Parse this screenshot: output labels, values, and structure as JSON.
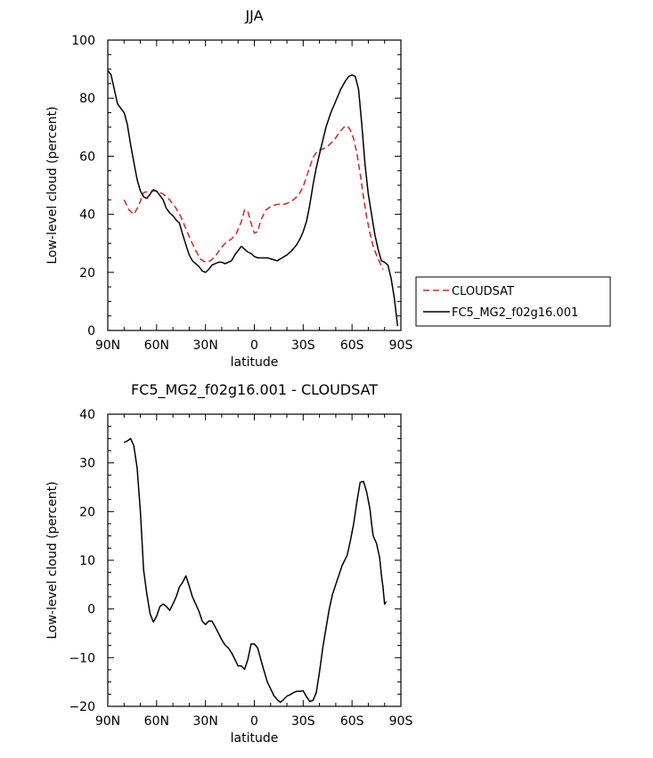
{
  "chart_data": [
    {
      "type": "line",
      "title": "JJA",
      "xlabel": "latitude",
      "ylabel": "Low-level cloud (percent)",
      "xlim": [
        90,
        -90
      ],
      "ylim": [
        0,
        100
      ],
      "x_ticks": [
        {
          "value": 90,
          "label": "90N"
        },
        {
          "value": 60,
          "label": "60N"
        },
        {
          "value": 30,
          "label": "30N"
        },
        {
          "value": 0,
          "label": "0"
        },
        {
          "value": -30,
          "label": "30S"
        },
        {
          "value": -60,
          "label": "60S"
        },
        {
          "value": -90,
          "label": "90S"
        }
      ],
      "y_ticks": [
        {
          "value": 0,
          "label": "0"
        },
        {
          "value": 20,
          "label": "20"
        },
        {
          "value": 40,
          "label": "40"
        },
        {
          "value": 60,
          "label": "60"
        },
        {
          "value": 80,
          "label": "80"
        },
        {
          "value": 100,
          "label": "100"
        }
      ],
      "grid": false,
      "legend_position": "outside-right",
      "series": [
        {
          "name": "CLOUDSAT",
          "color": "#e02020",
          "dash": "dashed",
          "points": [
            [
              80,
              45
            ],
            [
              77,
              41.5
            ],
            [
              74,
              40
            ],
            [
              71,
              43
            ],
            [
              68,
              47.5
            ],
            [
              64,
              48
            ],
            [
              60,
              48
            ],
            [
              56,
              47
            ],
            [
              52,
              45
            ],
            [
              48,
              42
            ],
            [
              45,
              39
            ],
            [
              42,
              35
            ],
            [
              39,
              31
            ],
            [
              36,
              27.5
            ],
            [
              33,
              24.5
            ],
            [
              30,
              23.5
            ],
            [
              27,
              24
            ],
            [
              24,
              25.5
            ],
            [
              21,
              28
            ],
            [
              18,
              30
            ],
            [
              14,
              31.5
            ],
            [
              11,
              33.5
            ],
            [
              8,
              37.5
            ],
            [
              6,
              41.5
            ],
            [
              4,
              41
            ],
            [
              2,
              37
            ],
            [
              0,
              33.5
            ],
            [
              -2,
              34
            ],
            [
              -4,
              38
            ],
            [
              -7,
              41.5
            ],
            [
              -11,
              43
            ],
            [
              -15,
              43.5
            ],
            [
              -19,
              43.5
            ],
            [
              -23,
              44.5
            ],
            [
              -27,
              46.5
            ],
            [
              -30,
              49.5
            ],
            [
              -33,
              54.5
            ],
            [
              -36,
              59.5
            ],
            [
              -39,
              62
            ],
            [
              -42,
              62.5
            ],
            [
              -45,
              63.5
            ],
            [
              -49,
              65.5
            ],
            [
              -52,
              68
            ],
            [
              -55,
              70
            ],
            [
              -57,
              70.5
            ],
            [
              -59,
              69
            ],
            [
              -61,
              66
            ],
            [
              -63,
              61
            ],
            [
              -65,
              54
            ],
            [
              -67,
              46
            ],
            [
              -69,
              39
            ],
            [
              -71,
              33.5
            ],
            [
              -73,
              29
            ],
            [
              -75,
              26
            ],
            [
              -77,
              23.5
            ],
            [
              -79,
              21
            ]
          ]
        },
        {
          "name": "FC5_MG2_f02g16.001",
          "color": "#000000",
          "dash": "solid",
          "points": [
            [
              90,
              89.5
            ],
            [
              88,
              88
            ],
            [
              86,
              83
            ],
            [
              84,
              78
            ],
            [
              82,
              76.5
            ],
            [
              80,
              75
            ],
            [
              78,
              71
            ],
            [
              76,
              64
            ],
            [
              74,
              58
            ],
            [
              72,
              52
            ],
            [
              70,
              48
            ],
            [
              68,
              46
            ],
            [
              66,
              45.5
            ],
            [
              64,
              47
            ],
            [
              62,
              48.5
            ],
            [
              60,
              48
            ],
            [
              58,
              46.5
            ],
            [
              56,
              45
            ],
            [
              54,
              42
            ],
            [
              52,
              40.5
            ],
            [
              50,
              39.5
            ],
            [
              48,
              38
            ],
            [
              46,
              37
            ],
            [
              44,
              33
            ],
            [
              42,
              29.5
            ],
            [
              40,
              26
            ],
            [
              38,
              24
            ],
            [
              36,
              23
            ],
            [
              34,
              22
            ],
            [
              32,
              20.5
            ],
            [
              30,
              20
            ],
            [
              28,
              21
            ],
            [
              26,
              22.5
            ],
            [
              24,
              23
            ],
            [
              22,
              23.5
            ],
            [
              20,
              23.5
            ],
            [
              18,
              23
            ],
            [
              16,
              23.5
            ],
            [
              14,
              24
            ],
            [
              12,
              26
            ],
            [
              10,
              27.5
            ],
            [
              8,
              29
            ],
            [
              6,
              28
            ],
            [
              4,
              27
            ],
            [
              2,
              26.5
            ],
            [
              0,
              25.5
            ],
            [
              -2,
              25
            ],
            [
              -5,
              25
            ],
            [
              -8,
              25
            ],
            [
              -11,
              24.5
            ],
            [
              -14,
              24
            ],
            [
              -17,
              25
            ],
            [
              -20,
              26
            ],
            [
              -23,
              27.5
            ],
            [
              -26,
              29.5
            ],
            [
              -28,
              31.5
            ],
            [
              -30,
              34
            ],
            [
              -32,
              37.5
            ],
            [
              -34,
              43
            ],
            [
              -36,
              50
            ],
            [
              -38,
              56
            ],
            [
              -41,
              63
            ],
            [
              -44,
              70
            ],
            [
              -47,
              75
            ],
            [
              -50,
              79
            ],
            [
              -53,
              83
            ],
            [
              -56,
              86
            ],
            [
              -58,
              87.5
            ],
            [
              -60,
              88
            ],
            [
              -62,
              87.5
            ],
            [
              -64,
              83
            ],
            [
              -66,
              71
            ],
            [
              -68,
              57
            ],
            [
              -70,
              47
            ],
            [
              -72,
              40
            ],
            [
              -74,
              33
            ],
            [
              -76,
              28
            ],
            [
              -78,
              24
            ],
            [
              -80,
              23.5
            ],
            [
              -82,
              22.5
            ],
            [
              -84,
              18
            ],
            [
              -86,
              11
            ],
            [
              -88,
              1.5
            ]
          ]
        }
      ]
    },
    {
      "type": "line",
      "title": "FC5_MG2_f02g16.001 - CLOUDSAT",
      "xlabel": "latitude",
      "ylabel": "Low-level cloud (percent)",
      "xlim": [
        90,
        -90
      ],
      "ylim": [
        -20,
        40
      ],
      "x_ticks": [
        {
          "value": 90,
          "label": "90N"
        },
        {
          "value": 60,
          "label": "60N"
        },
        {
          "value": 30,
          "label": "30N"
        },
        {
          "value": 0,
          "label": "0"
        },
        {
          "value": -30,
          "label": "30S"
        },
        {
          "value": -60,
          "label": "60S"
        },
        {
          "value": -90,
          "label": "90S"
        }
      ],
      "y_ticks": [
        {
          "value": -20,
          "label": "−20"
        },
        {
          "value": -10,
          "label": "−10"
        },
        {
          "value": 0,
          "label": "0"
        },
        {
          "value": 10,
          "label": "10"
        },
        {
          "value": 20,
          "label": "20"
        },
        {
          "value": 30,
          "label": "30"
        },
        {
          "value": 40,
          "label": "40"
        }
      ],
      "grid": false,
      "series": [
        {
          "color": "#000000",
          "dash": "solid",
          "points": [
            [
              80,
              34.2
            ],
            [
              78,
              34.5
            ],
            [
              76,
              35
            ],
            [
              74,
              33.5
            ],
            [
              72,
              29
            ],
            [
              70,
              20
            ],
            [
              68,
              8
            ],
            [
              66,
              3
            ],
            [
              64,
              -1
            ],
            [
              62,
              -2.7
            ],
            [
              60,
              -1.5
            ],
            [
              58,
              0.5
            ],
            [
              56,
              1
            ],
            [
              54,
              0.5
            ],
            [
              52,
              -0.3
            ],
            [
              50,
              1
            ],
            [
              48,
              2.5
            ],
            [
              46,
              4.5
            ],
            [
              44,
              5.5
            ],
            [
              42,
              6.8
            ],
            [
              40,
              4.7
            ],
            [
              38,
              2.5
            ],
            [
              36,
              1
            ],
            [
              34,
              -0.5
            ],
            [
              32,
              -2.5
            ],
            [
              30,
              -3.2
            ],
            [
              28,
              -2.5
            ],
            [
              26,
              -2.5
            ],
            [
              24,
              -3.7
            ],
            [
              22,
              -5
            ],
            [
              20,
              -6.3
            ],
            [
              18,
              -7.4
            ],
            [
              16,
              -8
            ],
            [
              14,
              -9
            ],
            [
              12,
              -10.3
            ],
            [
              10,
              -11.7
            ],
            [
              8,
              -11.7
            ],
            [
              6,
              -12.4
            ],
            [
              4,
              -10.4
            ],
            [
              2,
              -7.2
            ],
            [
              0,
              -7.2
            ],
            [
              -2,
              -8
            ],
            [
              -4,
              -10.4
            ],
            [
              -6,
              -12.8
            ],
            [
              -8,
              -15
            ],
            [
              -10,
              -16.4
            ],
            [
              -12,
              -17.8
            ],
            [
              -14,
              -18.6
            ],
            [
              -16,
              -19.2
            ],
            [
              -18,
              -18.6
            ],
            [
              -20,
              -17.9
            ],
            [
              -22,
              -17.6
            ],
            [
              -24,
              -17.2
            ],
            [
              -26,
              -16.9
            ],
            [
              -28,
              -16.9
            ],
            [
              -30,
              -16.8
            ],
            [
              -32,
              -18
            ],
            [
              -34,
              -19
            ],
            [
              -36,
              -18.8
            ],
            [
              -38,
              -17.2
            ],
            [
              -40,
              -13
            ],
            [
              -42,
              -8
            ],
            [
              -44,
              -4
            ],
            [
              -46,
              0
            ],
            [
              -48,
              3
            ],
            [
              -51,
              6
            ],
            [
              -54,
              9
            ],
            [
              -57,
              11
            ],
            [
              -59,
              14
            ],
            [
              -61,
              17.5
            ],
            [
              -63,
              22
            ],
            [
              -65,
              26
            ],
            [
              -67,
              26.2
            ],
            [
              -69,
              24
            ],
            [
              -71,
              20.5
            ],
            [
              -72,
              17.5
            ],
            [
              -73,
              15
            ],
            [
              -75,
              13.5
            ],
            [
              -77,
              10.5
            ],
            [
              -78,
              7
            ],
            [
              -79,
              4.5
            ],
            [
              -80,
              1
            ],
            [
              -81,
              1.5
            ]
          ]
        }
      ]
    }
  ]
}
